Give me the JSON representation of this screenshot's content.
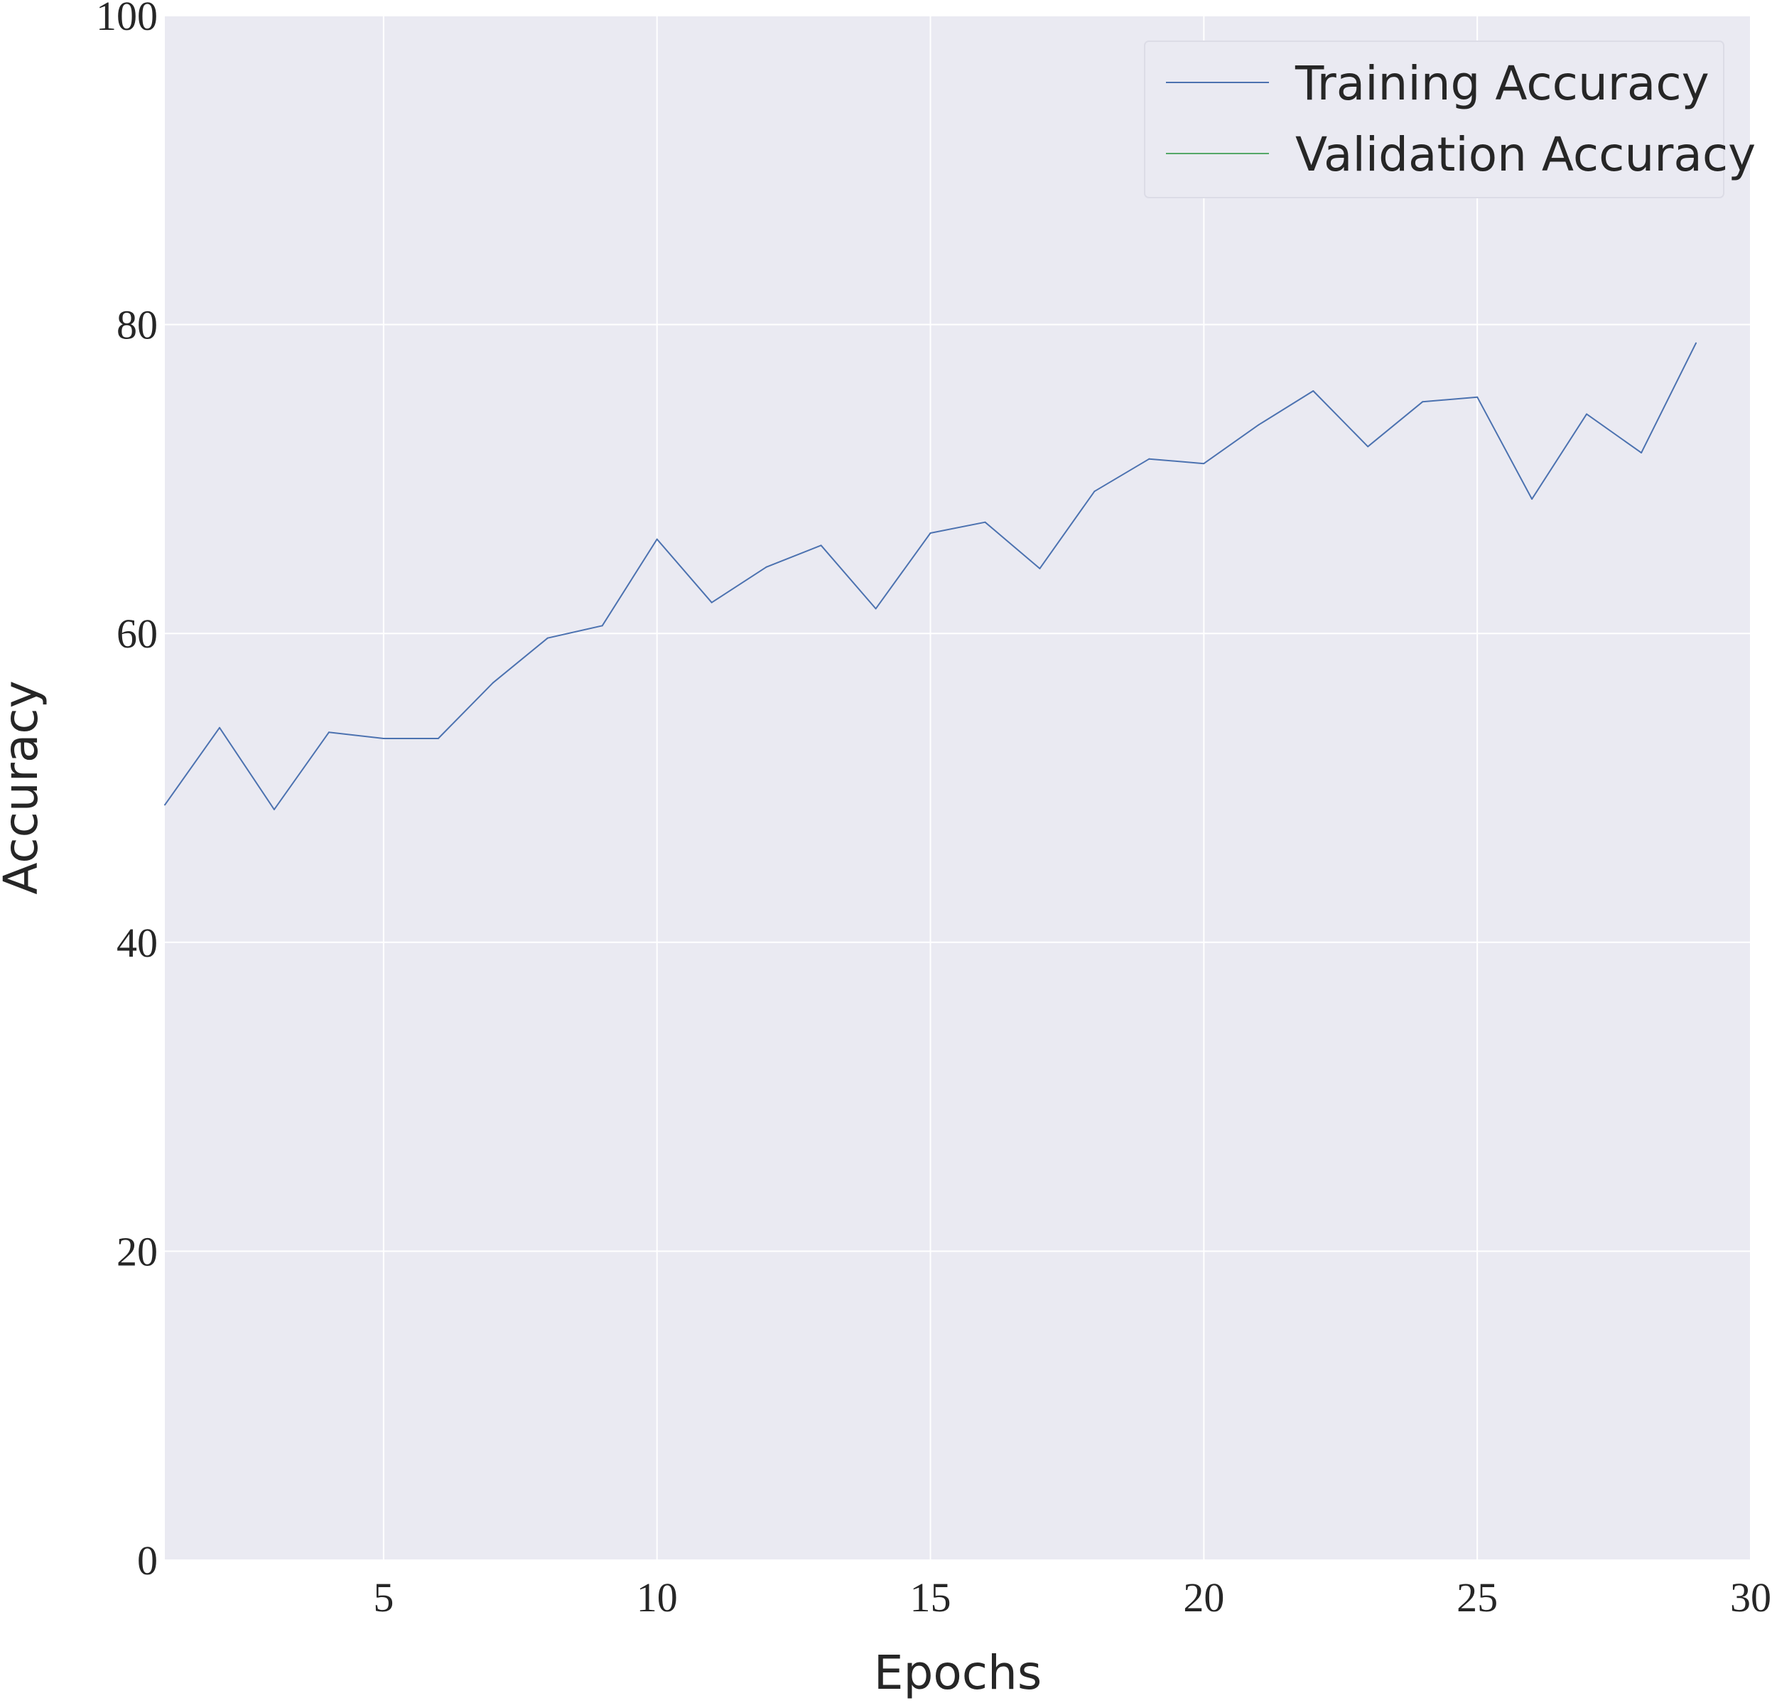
{
  "chart_data": {
    "type": "line",
    "xlabel": "Epochs",
    "ylabel": "Accuracy",
    "xlim": [
      1,
      30
    ],
    "ylim": [
      0,
      100
    ],
    "xticks": [
      5,
      10,
      15,
      20,
      25,
      30
    ],
    "yticks": [
      0,
      20,
      40,
      60,
      80,
      100
    ],
    "grid": true,
    "background_color": "#EAEAF2",
    "grid_color": "#FFFFFF",
    "legend_position": "top-right",
    "series": [
      {
        "name": "Training Accuracy",
        "color": "#4C72B0",
        "x": [
          1,
          2,
          3,
          4,
          5,
          6,
          7,
          8,
          9,
          10,
          11,
          12,
          13,
          14,
          15,
          16,
          17,
          18,
          19,
          20,
          21,
          22,
          23,
          24,
          25,
          26,
          27,
          28,
          29
        ],
        "y": [
          48.9,
          53.9,
          48.6,
          53.6,
          53.2,
          53.2,
          56.8,
          59.7,
          60.5,
          66.1,
          62.0,
          64.3,
          65.7,
          61.6,
          66.5,
          67.2,
          64.2,
          69.2,
          71.3,
          71.0,
          73.5,
          75.7,
          72.1,
          75.0,
          75.3,
          68.7,
          74.2,
          71.7,
          78.8
        ]
      },
      {
        "name": "Validation Accuracy",
        "color": "#55A868",
        "x": [],
        "y": []
      }
    ]
  }
}
